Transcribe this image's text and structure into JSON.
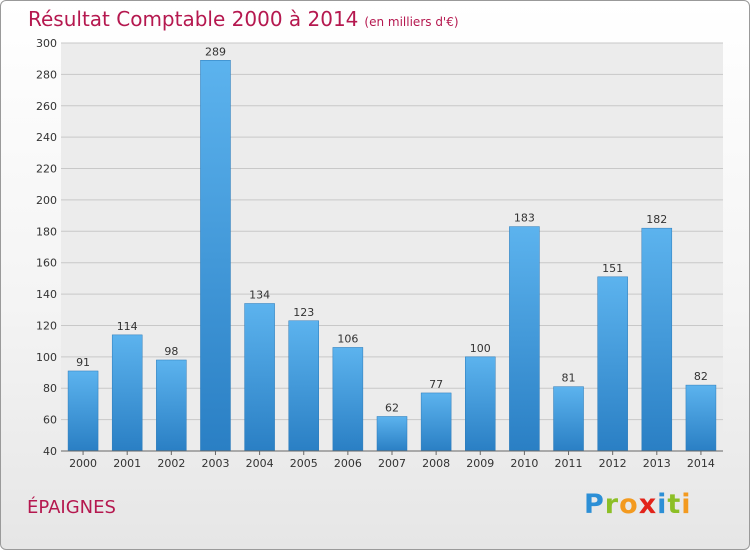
{
  "header": {
    "title": "Résultat Comptable 2000 à 2014",
    "subtitle": "(en milliers d'€)"
  },
  "footer": {
    "place": "ÉPAIGNES",
    "logo_letters": [
      {
        "char": "P",
        "color": "#2c8fd6"
      },
      {
        "char": "r",
        "color": "#8cbf26"
      },
      {
        "char": "o",
        "color": "#f39a1f"
      },
      {
        "char": "x",
        "color": "#e2231a"
      },
      {
        "char": "i",
        "color": "#2c8fd6"
      },
      {
        "char": "t",
        "color": "#8cbf26"
      },
      {
        "char": "i",
        "color": "#f39a1f"
      }
    ]
  },
  "chart_data": {
    "type": "bar",
    "categories": [
      "2000",
      "2001",
      "2002",
      "2003",
      "2004",
      "2005",
      "2006",
      "2007",
      "2008",
      "2009",
      "2010",
      "2011",
      "2012",
      "2013",
      "2014"
    ],
    "values": [
      91,
      114,
      98,
      289,
      134,
      123,
      106,
      62,
      77,
      100,
      183,
      81,
      151,
      182,
      82
    ],
    "title": "Résultat Comptable 2000 à 2014",
    "ylim": [
      40,
      300
    ],
    "yticks": [
      40,
      60,
      80,
      100,
      120,
      140,
      160,
      180,
      200,
      220,
      240,
      260,
      280,
      300
    ],
    "grid": true,
    "data_labels": true,
    "bar_color": "#4aa3e6"
  }
}
